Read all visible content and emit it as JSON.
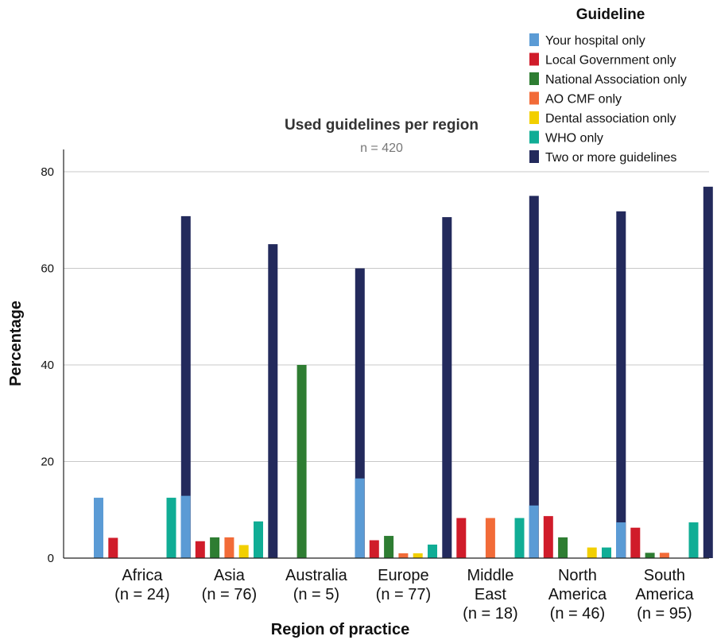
{
  "chart_data": {
    "type": "bar",
    "title": "Used guidelines per region",
    "subtitle": "n = 420",
    "xlabel": "Region of practice",
    "ylabel": "Percentage",
    "ylim": [
      0,
      85
    ],
    "yticks": [
      0,
      20,
      40,
      60,
      80
    ],
    "grid": true,
    "legend": {
      "title": "Guideline",
      "position": "top-right"
    },
    "categories": [
      [
        "Africa",
        "(n = 24)"
      ],
      [
        "Asia",
        "(n = 76)"
      ],
      [
        "Australia",
        "(n = 5)"
      ],
      [
        "Europe",
        "(n = 77)"
      ],
      [
        "Middle",
        "East",
        "(n = 18)"
      ],
      [
        "North",
        "America",
        "(n = 46)"
      ],
      [
        "South",
        "America",
        "(n = 95)"
      ]
    ],
    "series": [
      {
        "name": "Your hospital only",
        "color": "#5b9bd5",
        "values": [
          12.5,
          12.9,
          0,
          16.5,
          0,
          10.9,
          7.4
        ]
      },
      {
        "name": "Local Government only",
        "color": "#d01c2a",
        "values": [
          4.2,
          3.5,
          0,
          3.7,
          8.3,
          8.7,
          6.3
        ]
      },
      {
        "name": "National Association only",
        "color": "#2e7d32",
        "values": [
          0,
          4.3,
          40,
          4.6,
          0,
          4.3,
          1.1
        ]
      },
      {
        "name": "AO CMF only",
        "color": "#f26b38",
        "values": [
          0,
          4.3,
          0,
          1.0,
          8.3,
          0,
          1.1
        ]
      },
      {
        "name": "Dental association only",
        "color": "#f2cf00",
        "values": [
          0,
          2.7,
          0,
          1.0,
          0,
          2.2,
          0
        ]
      },
      {
        "name": "WHO only",
        "color": "#10ad95",
        "values": [
          12.5,
          7.6,
          0,
          2.8,
          8.3,
          2.2,
          7.4
        ]
      },
      {
        "name": "Two or more guidelines",
        "color": "#232a5c",
        "values": [
          70.8,
          65.0,
          60.0,
          70.6,
          75.0,
          71.8,
          76.9
        ]
      }
    ]
  }
}
